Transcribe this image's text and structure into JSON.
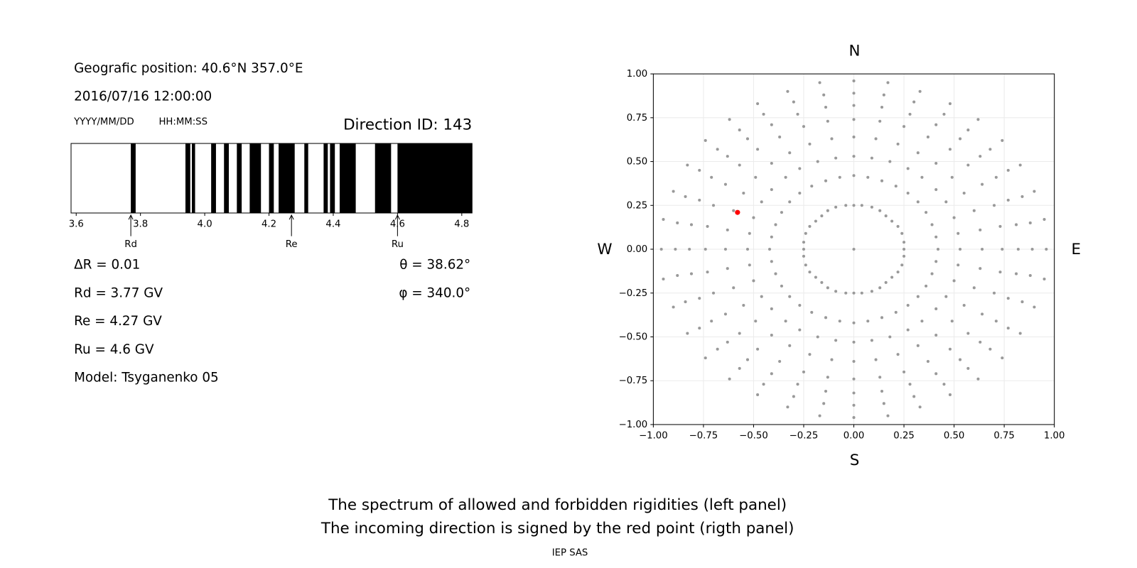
{
  "header": {
    "position": "Geografic position: 40.6°N 357.0°E",
    "datetime": "2016/07/16 12:00:00",
    "date_format": "YYYY/MM/DD",
    "time_format": "HH:MM:SS",
    "direction": "Direction ID: 143"
  },
  "results": {
    "delta_r": "ΔR = 0.01",
    "rd": "Rd = 3.77 GV",
    "re": "Re = 4.27 GV",
    "ru": "Ru = 4.6 GV",
    "model": "Model: Tsyganenko 05",
    "theta": "θ = 38.62°",
    "phi": "φ = 340.0°"
  },
  "chart_data": [
    {
      "type": "spectrum",
      "xlim": [
        3.584,
        4.832
      ],
      "xticks": [
        3.6,
        3.8,
        {
          "value": 4,
          "label": "4.0"
        },
        4.2,
        4.4,
        4.6,
        4.8
      ],
      "color": "#000000",
      "forbidden": [
        [
          3.77,
          3.785
        ],
        [
          3.94,
          3.955
        ],
        [
          3.96,
          3.97
        ],
        [
          4.02,
          4.035
        ],
        [
          4.06,
          4.075
        ],
        [
          4.1,
          4.115
        ],
        [
          4.14,
          4.175
        ],
        [
          4.2,
          4.215
        ],
        [
          4.23,
          4.28
        ],
        [
          4.31,
          4.322
        ],
        [
          4.37,
          4.383
        ],
        [
          4.39,
          4.405
        ],
        [
          4.42,
          4.47
        ],
        [
          4.53,
          4.58
        ],
        [
          4.6,
          4.832
        ]
      ],
      "markers": [
        {
          "label": "Rd",
          "value": 3.77
        },
        {
          "label": "Re",
          "value": 4.27
        },
        {
          "label": "Ru",
          "value": 4.6
        }
      ]
    },
    {
      "type": "scatter",
      "xlim": [
        -1,
        1
      ],
      "ylim": [
        -1,
        1
      ],
      "grid": true,
      "xticks": [
        {
          "value": -1,
          "label": "−1.00"
        },
        {
          "value": -0.75,
          "label": "−0.75"
        },
        {
          "value": -0.5,
          "label": "−0.50"
        },
        {
          "value": -0.25,
          "label": "−0.25"
        },
        {
          "value": 0,
          "label": "0.00"
        },
        0.25,
        {
          "value": 0.5,
          "label": "0.50"
        },
        0.75,
        {
          "value": 1,
          "label": "1.00"
        }
      ],
      "yticks": [
        {
          "value": -1,
          "label": "−1.00"
        },
        {
          "value": -0.75,
          "label": "−0.75"
        },
        {
          "value": -0.5,
          "label": "−0.50"
        },
        {
          "value": -0.25,
          "label": "−0.25"
        },
        {
          "value": 0,
          "label": "0.00"
        },
        0.25,
        {
          "value": 0.5,
          "label": "0.50"
        },
        0.75,
        {
          "value": 1,
          "label": "1.00"
        }
      ],
      "directions": {
        "top": "N",
        "bottom": "S",
        "left": "W",
        "right": "E"
      },
      "series": [
        {
          "color": "#999999",
          "x": [
            0.25,
            0.25,
            0.24,
            0.22,
            0.19,
            0.16,
            0.13,
            0.09,
            0.04,
            0,
            -0.04,
            -0.09,
            -0.13,
            -0.16,
            -0.19,
            -0.22,
            -0.24,
            -0.25,
            -0.25,
            -0.25,
            -0.24,
            -0.22,
            -0.19,
            -0.16,
            -0.13,
            -0.09,
            -0.04,
            0,
            0.04,
            0.09,
            0.13,
            0.16,
            0.19,
            0.22,
            0.24,
            0.25,
            0
          ],
          "y": [
            0,
            0.04,
            0.09,
            0.13,
            0.16,
            0.19,
            0.22,
            0.24,
            0.25,
            0.25,
            0.25,
            0.24,
            0.22,
            0.19,
            0.16,
            0.13,
            0.09,
            0.04,
            0,
            -0.04,
            -0.09,
            -0.13,
            -0.16,
            -0.19,
            -0.22,
            -0.24,
            -0.25,
            -0.25,
            -0.25,
            -0.24,
            -0.22,
            -0.19,
            -0.16,
            -0.13,
            -0.09,
            -0.04,
            0
          ]
        },
        {
          "color": "#999999",
          "x": [
            0.42,
            0.41,
            0.39,
            0.36,
            0.32,
            0.27,
            0.21,
            0.14,
            0.07,
            0,
            -0.07,
            -0.14,
            -0.21,
            -0.27,
            -0.32,
            -0.36,
            -0.39,
            -0.41,
            -0.42,
            -0.41,
            -0.39,
            -0.36,
            -0.32,
            -0.27,
            -0.21,
            -0.14,
            -0.07,
            0,
            0.07,
            0.14,
            0.21,
            0.27,
            0.32,
            0.36,
            0.39,
            0.41
          ],
          "y": [
            0,
            0.07,
            0.14,
            0.21,
            0.27,
            0.32,
            0.36,
            0.39,
            0.41,
            0.42,
            0.41,
            0.39,
            0.36,
            0.32,
            0.27,
            0.21,
            0.14,
            0.07,
            0,
            -0.07,
            -0.14,
            -0.21,
            -0.27,
            -0.32,
            -0.36,
            -0.39,
            -0.41,
            -0.42,
            -0.41,
            -0.39,
            -0.36,
            -0.32,
            -0.27,
            -0.21,
            -0.14,
            -0.07
          ]
        },
        {
          "color": "#999999",
          "x": [
            0.53,
            0.52,
            0.5,
            0.46,
            0.41,
            0.34,
            0.27,
            0.18,
            0.09,
            0,
            -0.09,
            -0.18,
            -0.27,
            -0.34,
            -0.41,
            -0.46,
            -0.5,
            -0.52,
            -0.53,
            -0.52,
            -0.5,
            -0.46,
            -0.41,
            -0.34,
            -0.27,
            -0.18,
            -0.09,
            0,
            0.09,
            0.18,
            0.27,
            0.34,
            0.41,
            0.46,
            0.5,
            0.52
          ],
          "y": [
            0,
            0.09,
            0.18,
            0.27,
            0.34,
            0.41,
            0.46,
            0.5,
            0.52,
            0.53,
            0.52,
            0.5,
            0.46,
            0.41,
            0.34,
            0.27,
            0.18,
            0.09,
            0,
            -0.09,
            -0.18,
            -0.27,
            -0.34,
            -0.41,
            -0.46,
            -0.5,
            -0.52,
            -0.53,
            -0.52,
            -0.5,
            -0.46,
            -0.41,
            -0.34,
            -0.27,
            -0.18,
            -0.09
          ]
        },
        {
          "color": "#999999",
          "x": [
            0.64,
            0.63,
            0.6,
            0.55,
            0.49,
            0.41,
            0.32,
            0.22,
            0.11,
            0,
            -0.11,
            -0.22,
            -0.32,
            -0.41,
            -0.49,
            -0.55,
            -0.6,
            -0.63,
            -0.64,
            -0.63,
            -0.6,
            -0.55,
            -0.49,
            -0.41,
            -0.32,
            -0.22,
            -0.11,
            0,
            0.11,
            0.22,
            0.32,
            0.41,
            0.49,
            0.55,
            0.6,
            0.63
          ],
          "y": [
            0,
            0.11,
            0.22,
            0.32,
            0.41,
            0.49,
            0.55,
            0.6,
            0.63,
            0.64,
            0.63,
            0.6,
            0.55,
            0.49,
            0.41,
            0.32,
            0.22,
            0.11,
            0,
            -0.11,
            -0.22,
            -0.32,
            -0.41,
            -0.49,
            -0.55,
            -0.6,
            -0.63,
            -0.64,
            -0.63,
            -0.6,
            -0.55,
            -0.49,
            -0.41,
            -0.32,
            -0.22,
            -0.11
          ]
        },
        {
          "color": "#999999",
          "x": [
            0.74,
            0.73,
            0.7,
            0.64,
            0.57,
            0.48,
            0.37,
            0.25,
            0.13,
            0,
            -0.13,
            -0.25,
            -0.37,
            -0.48,
            -0.57,
            -0.64,
            -0.7,
            -0.73,
            -0.74,
            -0.73,
            -0.7,
            -0.64,
            -0.57,
            -0.48,
            -0.37,
            -0.25,
            -0.13,
            0,
            0.13,
            0.25,
            0.37,
            0.48,
            0.57,
            0.64,
            0.7,
            0.73
          ],
          "y": [
            0,
            0.13,
            0.25,
            0.37,
            0.48,
            0.57,
            0.64,
            0.7,
            0.73,
            0.74,
            0.73,
            0.7,
            0.64,
            0.57,
            0.48,
            0.37,
            0.25,
            0.13,
            0,
            -0.13,
            -0.25,
            -0.37,
            -0.48,
            -0.57,
            -0.64,
            -0.7,
            -0.73,
            -0.74,
            -0.73,
            -0.7,
            -0.64,
            -0.57,
            -0.48,
            -0.37,
            -0.25,
            -0.13
          ]
        },
        {
          "color": "#999999",
          "x": [
            0.82,
            0.81,
            0.77,
            0.71,
            0.63,
            0.53,
            0.41,
            0.28,
            0.14,
            0,
            -0.14,
            -0.28,
            -0.41,
            -0.53,
            -0.63,
            -0.71,
            -0.77,
            -0.81,
            -0.82,
            -0.81,
            -0.77,
            -0.71,
            -0.63,
            -0.53,
            -0.41,
            -0.28,
            -0.14,
            0,
            0.14,
            0.28,
            0.41,
            0.53,
            0.63,
            0.71,
            0.77,
            0.81
          ],
          "y": [
            0,
            0.14,
            0.28,
            0.41,
            0.53,
            0.63,
            0.71,
            0.77,
            0.81,
            0.82,
            0.81,
            0.77,
            0.71,
            0.63,
            0.53,
            0.41,
            0.28,
            0.14,
            0,
            -0.14,
            -0.28,
            -0.41,
            -0.53,
            -0.63,
            -0.71,
            -0.77,
            -0.81,
            -0.82,
            -0.81,
            -0.77,
            -0.71,
            -0.63,
            -0.53,
            -0.41,
            -0.28,
            -0.14
          ]
        },
        {
          "color": "#999999",
          "x": [
            0.89,
            0.88,
            0.84,
            0.77,
            0.68,
            0.57,
            0.45,
            0.3,
            0.15,
            0,
            -0.15,
            -0.3,
            -0.45,
            -0.57,
            -0.68,
            -0.77,
            -0.84,
            -0.88,
            -0.89,
            -0.88,
            -0.84,
            -0.77,
            -0.68,
            -0.57,
            -0.45,
            -0.3,
            -0.15,
            0,
            0.15,
            0.3,
            0.45,
            0.57,
            0.68,
            0.77,
            0.84,
            0.88
          ],
          "y": [
            0,
            0.15,
            0.3,
            0.45,
            0.57,
            0.68,
            0.77,
            0.84,
            0.88,
            0.89,
            0.88,
            0.84,
            0.77,
            0.68,
            0.57,
            0.45,
            0.3,
            0.15,
            0,
            -0.15,
            -0.3,
            -0.45,
            -0.57,
            -0.68,
            -0.77,
            -0.84,
            -0.88,
            -0.89,
            -0.88,
            -0.84,
            -0.77,
            -0.68,
            -0.57,
            -0.45,
            -0.3,
            -0.15
          ]
        },
        {
          "color": "#999999",
          "x": [
            0.96,
            0.95,
            0.9,
            0.83,
            0.74,
            0.62,
            0.48,
            0.33,
            0.17,
            0,
            -0.17,
            -0.33,
            -0.48,
            -0.62,
            -0.74,
            -0.83,
            -0.9,
            -0.95,
            -0.96,
            -0.95,
            -0.9,
            -0.83,
            -0.74,
            -0.62,
            -0.48,
            -0.33,
            -0.17,
            0,
            0.17,
            0.33,
            0.48,
            0.62,
            0.74,
            0.83,
            0.9,
            0.95
          ],
          "y": [
            0,
            0.17,
            0.33,
            0.48,
            0.62,
            0.74,
            0.83,
            0.9,
            0.95,
            0.96,
            0.95,
            0.9,
            0.83,
            0.74,
            0.62,
            0.48,
            0.33,
            0.17,
            0,
            -0.17,
            -0.33,
            -0.48,
            -0.62,
            -0.74,
            -0.83,
            -0.9,
            -0.95,
            -0.96,
            -0.95,
            -0.9,
            -0.83,
            -0.74,
            -0.62,
            -0.48,
            -0.33,
            -0.17
          ]
        },
        {
          "color": "#ff0000",
          "x": [
            -0.58
          ],
          "y": [
            0.21
          ]
        }
      ]
    }
  ],
  "footer": {
    "lines": [
      "The spectrum of allowed and forbidden rigidities (left panel)",
      "The incoming direction is signed by the red point (rigth panel)"
    ],
    "credit": "IEP SAS"
  }
}
